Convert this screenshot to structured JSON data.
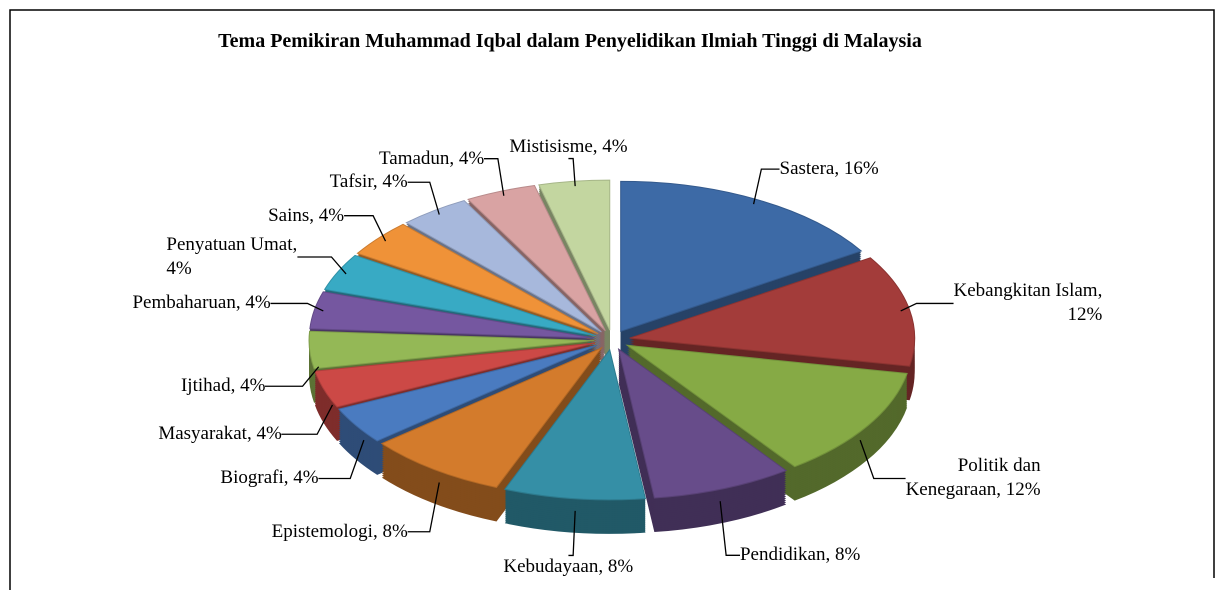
{
  "chart_data": {
    "type": "pie",
    "title": "Tema Pemikiran Muhammad Iqbal dalam Penyelidikan Ilmiah Tinggi di Malaysia",
    "values": [
      16,
      12,
      12,
      8,
      8,
      8,
      4,
      4,
      4,
      4,
      4,
      4,
      4,
      4,
      4
    ],
    "value_labels": [
      "Sastera, 16%",
      "Kebangkitan Islam,\n12%",
      "Politik dan\nKenegaraan, 12%",
      "Pendidikan, 8%",
      "Kebudayaan, 8%",
      "Epistemologi, 8%",
      "Biografi, 4%",
      "Masyarakat, 4%",
      "Ijtihad, 4%",
      "Pembaharuan, 4%",
      "Penyatuan Umat,\n4%",
      "Sains, 4%",
      "Tafsir, 4%",
      "Tamadun, 4%",
      "Mistisisme, 4%"
    ],
    "colors": [
      "#3d6aa6",
      "#a33c3a",
      "#86aa45",
      "#674c8a",
      "#358fa6",
      "#d37b2c",
      "#4a7bc0",
      "#cc4946",
      "#94b856",
      "#7557a0",
      "#38aac4",
      "#ef9238",
      "#a7b8dc",
      "#d9a3a3",
      "#c3d6a0"
    ]
  }
}
